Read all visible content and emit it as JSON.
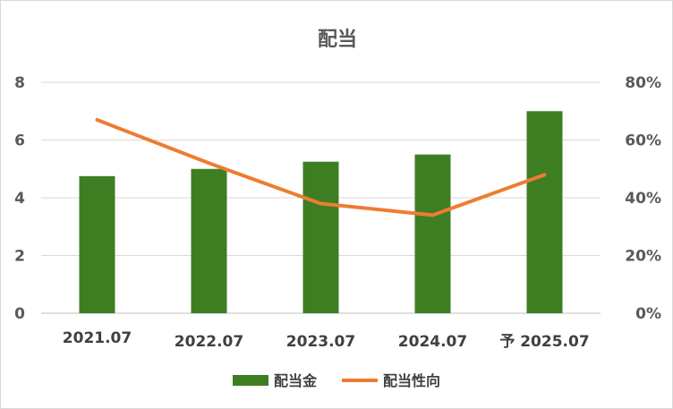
{
  "chart_data": {
    "type": "bar+line",
    "title": "配当",
    "categories": [
      "2021.07",
      "2022.07",
      "2023.07",
      "2024.07",
      "予 2025.07"
    ],
    "series": [
      {
        "name": "配当金",
        "type": "bar",
        "axis": "left",
        "color": "#3e7e23",
        "values": [
          4.75,
          5.0,
          5.25,
          5.5,
          7.0
        ]
      },
      {
        "name": "配当性向",
        "type": "line",
        "axis": "right",
        "color": "#ed7d31",
        "values": [
          0.67,
          0.52,
          0.38,
          0.34,
          0.48
        ]
      }
    ],
    "y_left": {
      "ylim": [
        0,
        8
      ],
      "ticks": [
        "0",
        "2",
        "4",
        "6",
        "8"
      ]
    },
    "y_right": {
      "ylim": [
        0,
        0.8
      ],
      "ticks": [
        "0%",
        "20%",
        "40%",
        "60%",
        "80%"
      ]
    },
    "grid": true,
    "legend": "bottom"
  }
}
